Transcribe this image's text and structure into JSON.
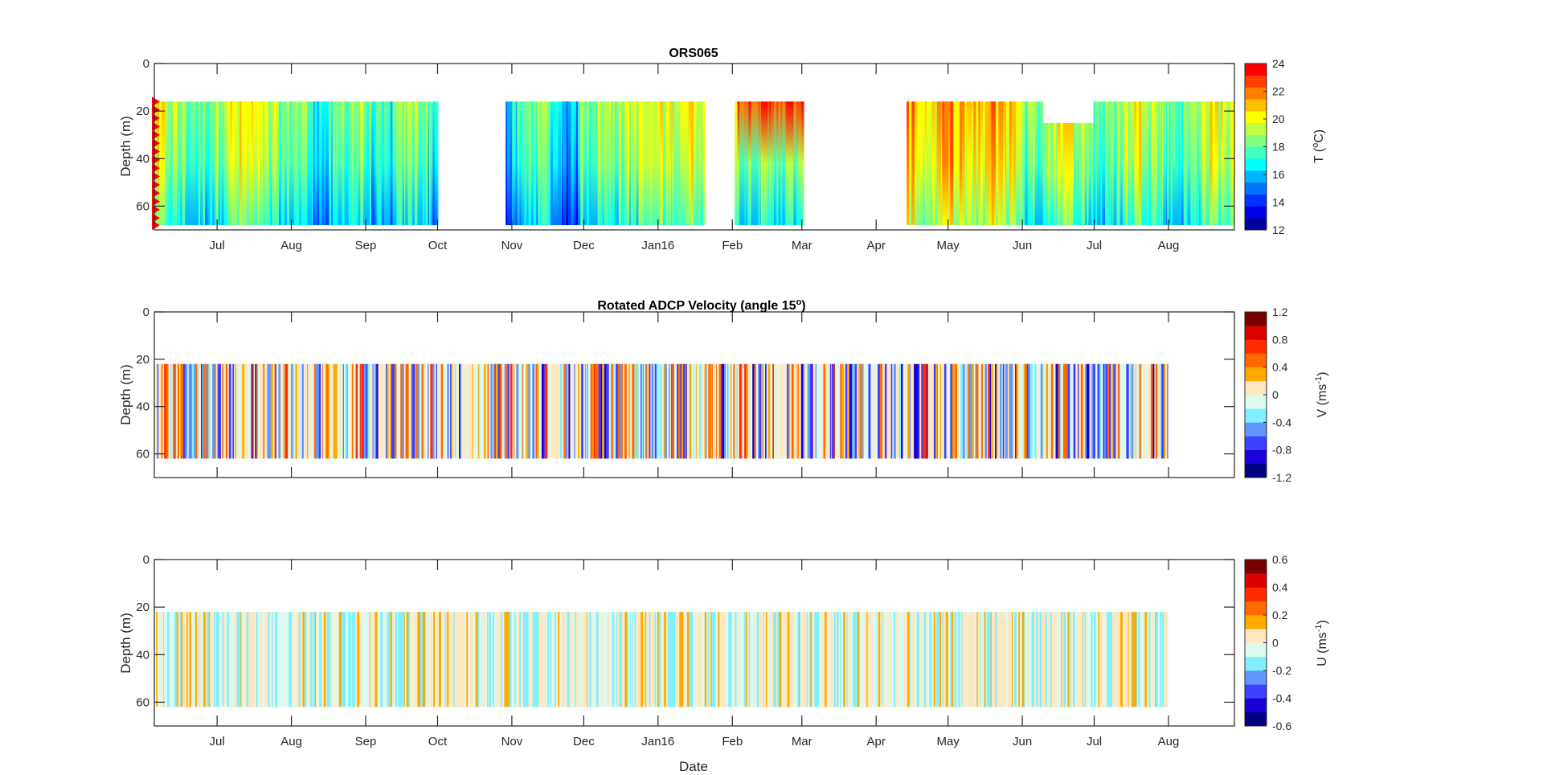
{
  "figure": {
    "xlabel": "Date",
    "month_ticks": [
      "Jul",
      "Aug",
      "Sep",
      "Oct",
      "Nov",
      "Dec",
      "Jan16",
      "Feb",
      "Mar",
      "Apr",
      "May",
      "Jun",
      "Jul",
      "Aug"
    ],
    "month_tick_days": [
      0,
      31,
      62,
      92,
      123,
      153,
      184,
      215,
      244,
      275,
      305,
      336,
      366,
      397
    ],
    "x_range_days": [
      -26.2,
      424.5
    ],
    "day_zero": "Jul 1"
  },
  "chart_data": [
    {
      "type": "heatmap",
      "title": "ORS065",
      "ylabel": "Depth (m)",
      "ylim": [
        0,
        70
      ],
      "yticks": [
        "0",
        "20",
        "40",
        "60"
      ],
      "ytick_values": [
        0,
        20,
        40,
        60
      ],
      "show_xticklabels": true,
      "colorbar": {
        "label": "T (°C)",
        "label_main": "T (",
        "label_sup": "o",
        "label_end": "C)",
        "clim": [
          12,
          24
        ],
        "ticks": [
          "24",
          "22",
          "20",
          "18",
          "16",
          "14",
          "12"
        ],
        "tick_values": [
          24,
          22,
          20,
          18,
          16,
          14,
          12
        ],
        "colors": [
          "#00009c",
          "#0000e8",
          "#0033ff",
          "#0073ff",
          "#00b3ff",
          "#00ffff",
          "#40ffc0",
          "#80ff80",
          "#bfff40",
          "#ffff00",
          "#ffbf00",
          "#ff8000",
          "#ff4000",
          "#ff0000"
        ]
      },
      "segments_days": [
        [
          -26.2,
          92.2
        ],
        [
          120.4,
          203.6
        ],
        [
          216.0,
          244.8
        ],
        [
          287.7,
          424.5
        ]
      ],
      "gap_notch_days": [
        344.4,
        364.9
      ],
      "gap_notch_top_depth": 25,
      "depth_range": [
        16,
        68
      ],
      "instrument_marker_depths": [
        16,
        19.5,
        23,
        26.5,
        30,
        33.5,
        37,
        40.5,
        44,
        47.5,
        51,
        54.5,
        58,
        61.5,
        65,
        68
      ],
      "marker_color": "#ff0000"
    },
    {
      "type": "heatmap",
      "title": "Rotated ADCP Velocity (angle 15°)",
      "title_main": "Rotated ADCP Velocity (angle 15",
      "title_sup": "o",
      "title_end": ")",
      "ylabel": "Depth (m)",
      "ylim": [
        0,
        70
      ],
      "yticks": [
        "0",
        "20",
        "40",
        "60"
      ],
      "ytick_values": [
        0,
        20,
        40,
        60
      ],
      "show_xticklabels": false,
      "colorbar": {
        "label": "V (ms-1)",
        "label_main": "V (ms",
        "label_sup": "-1",
        "label_end": ")",
        "clim": [
          -1.2,
          1.2
        ],
        "ticks": [
          "1.2",
          "0.8",
          "0.4",
          "0",
          "-0.4",
          "-0.8",
          "-1.2"
        ],
        "tick_values": [
          1.2,
          0.8,
          0.4,
          0,
          -0.4,
          -0.8,
          -1.2
        ],
        "colors": [
          "#000080",
          "#1a00d8",
          "#4040ff",
          "#6098ff",
          "#80f0ff",
          "#dcfaf0",
          "#ffe8c0",
          "#ffaa00",
          "#ff6a00",
          "#ff2a00",
          "#dd0000",
          "#7a0000"
        ]
      },
      "segments_days": [
        [
          -26.2,
          396.7
        ]
      ],
      "depth_range": [
        22,
        62
      ]
    },
    {
      "type": "heatmap",
      "title": "",
      "ylabel": "Depth (m)",
      "ylim": [
        0,
        70
      ],
      "yticks": [
        "0",
        "20",
        "40",
        "60"
      ],
      "ytick_values": [
        0,
        20,
        40,
        60
      ],
      "show_xticklabels": true,
      "colorbar": {
        "label": "U (ms-1)",
        "label_main": "U (ms",
        "label_sup": "-1",
        "label_end": ")",
        "clim": [
          -0.6,
          0.6
        ],
        "ticks": [
          "0.6",
          "0.4",
          "0.2",
          "0",
          "-0.2",
          "-0.4",
          "-0.6"
        ],
        "tick_values": [
          0.6,
          0.4,
          0.2,
          0,
          -0.2,
          -0.4,
          -0.6
        ],
        "colors": [
          "#000080",
          "#1a00d8",
          "#4040ff",
          "#6098ff",
          "#80f0ff",
          "#dcfaf0",
          "#ffe8c0",
          "#ffaa00",
          "#ff6a00",
          "#ff2a00",
          "#dd0000",
          "#7a0000"
        ]
      },
      "segments_days": [
        [
          -26.2,
          396.7
        ]
      ],
      "depth_range": [
        22,
        62
      ]
    }
  ]
}
